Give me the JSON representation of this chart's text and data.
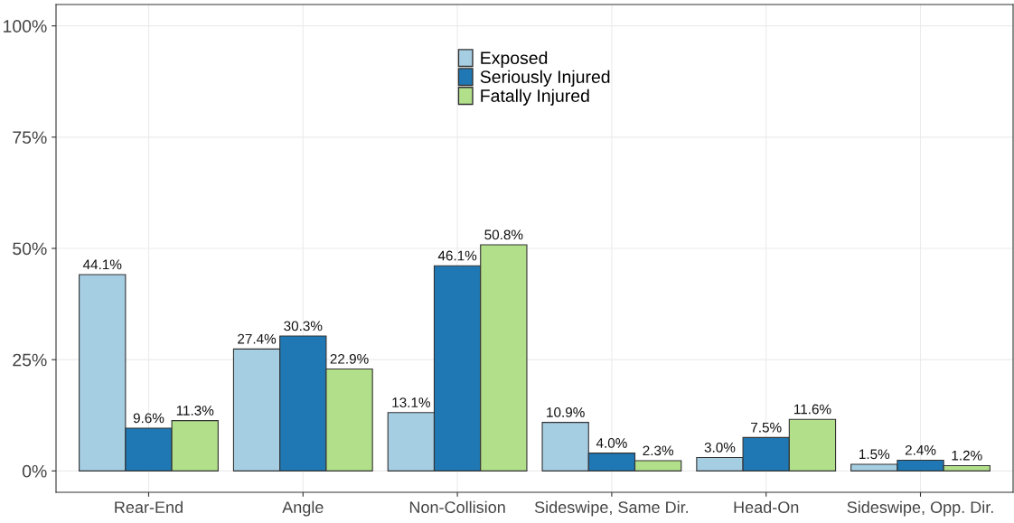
{
  "chart_data": {
    "type": "bar",
    "categories": [
      "Rear-End",
      "Angle",
      "Non-Collision",
      "Sideswipe, Same Dir.",
      "Head-On",
      "Sideswipe, Opp. Dir."
    ],
    "series": [
      {
        "name": "Exposed",
        "color": "#a6cee3",
        "values": [
          44.1,
          27.4,
          13.1,
          10.9,
          3.0,
          1.5
        ],
        "value_labels": [
          "44.1%",
          "27.4%",
          "13.1%",
          "10.9%",
          "3.0%",
          "1.5%"
        ]
      },
      {
        "name": "Seriously Injured",
        "color": "#1f78b4",
        "values": [
          9.6,
          30.3,
          46.1,
          4.0,
          7.5,
          2.4
        ],
        "value_labels": [
          "9.6%",
          "30.3%",
          "46.1%",
          "4.0%",
          "7.5%",
          "2.4%"
        ]
      },
      {
        "name": "Fatally Injured",
        "color": "#b2df8a",
        "values": [
          11.3,
          22.9,
          50.8,
          2.3,
          11.6,
          1.2
        ],
        "value_labels": [
          "11.3%",
          "22.9%",
          "50.8%",
          "2.3%",
          "11.6%",
          "1.2%"
        ]
      }
    ],
    "ylim": [
      -4.8,
      104.8
    ],
    "yticks": [
      {
        "value": 0,
        "label": "0%"
      },
      {
        "value": 25,
        "label": "25%"
      },
      {
        "value": 50,
        "label": "50%"
      },
      {
        "value": 75,
        "label": "75%"
      },
      {
        "value": 100,
        "label": "100%"
      }
    ],
    "grid": true,
    "legend": "top"
  }
}
